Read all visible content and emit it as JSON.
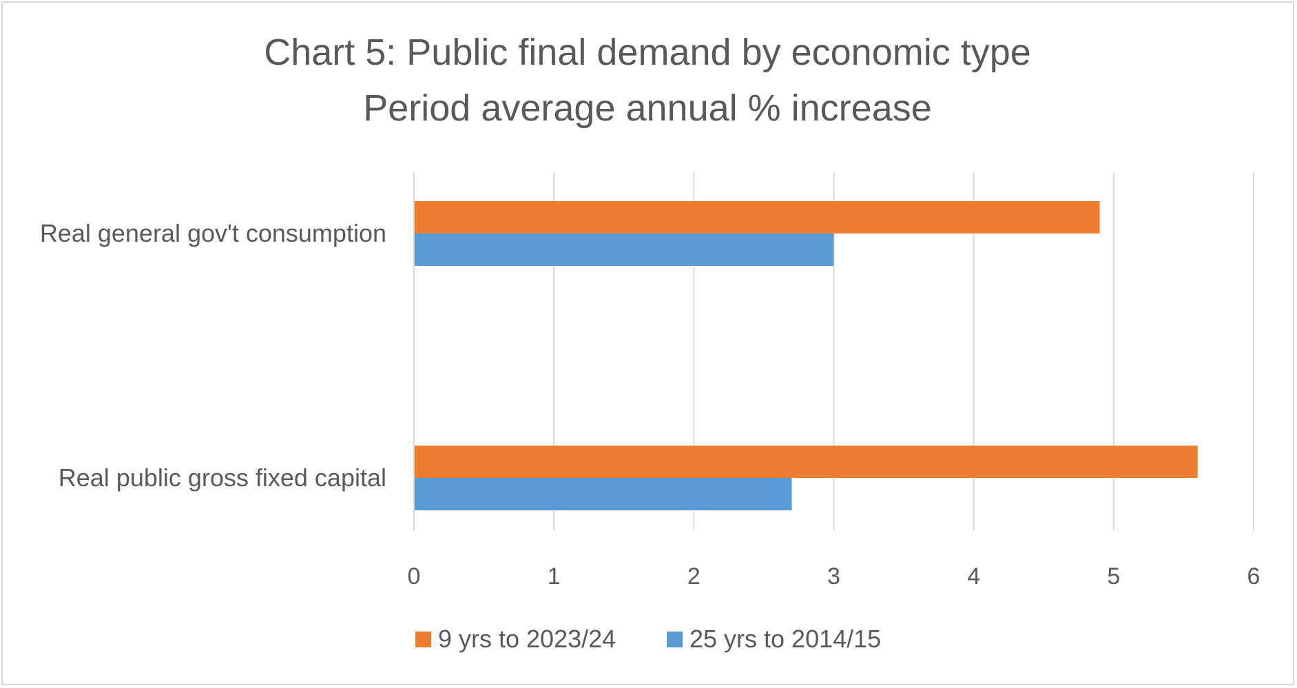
{
  "chart_data": {
    "type": "bar",
    "orientation": "horizontal",
    "title_lines": [
      "Chart 5: Public final demand by economic type",
      "Period average annual % increase"
    ],
    "categories": [
      "Real general gov't consumption",
      "Real public gross fixed capital"
    ],
    "series": [
      {
        "name": "9 yrs to 2023/24",
        "color": "#ED7D31",
        "values": [
          4.9,
          5.6
        ]
      },
      {
        "name": "25 yrs to 2014/15",
        "color": "#5B9BD5",
        "values": [
          3.0,
          2.7
        ]
      }
    ],
    "xlim": [
      0,
      6
    ],
    "x_ticks": [
      "0",
      "1",
      "2",
      "3",
      "4",
      "5",
      "6"
    ],
    "grid": true,
    "legend_position": "bottom"
  }
}
